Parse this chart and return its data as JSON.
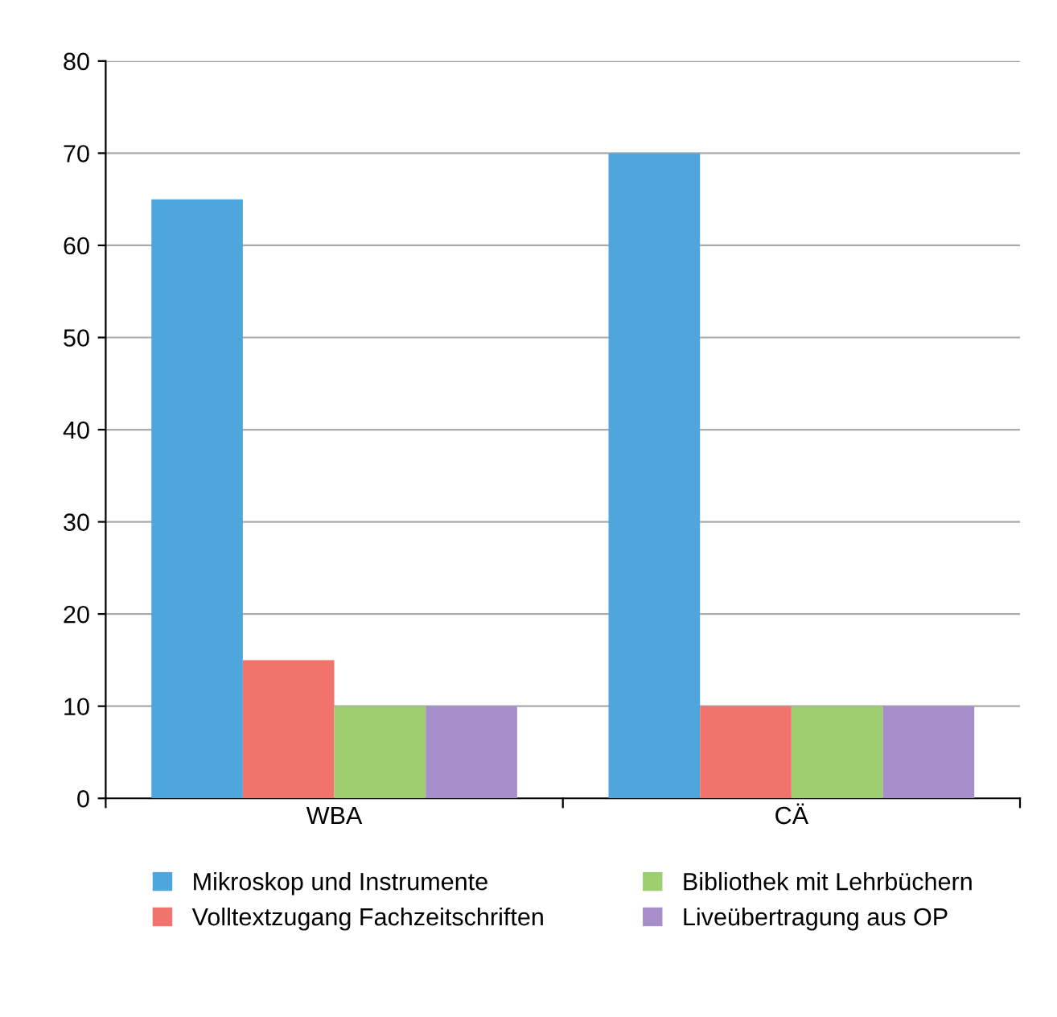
{
  "chart_data": {
    "type": "bar",
    "categories": [
      "WBA",
      "CÄ"
    ],
    "series": [
      {
        "name": "Mikroskop und Instrumente",
        "color": "#4fa6dd",
        "values": [
          65,
          70
        ]
      },
      {
        "name": "Volltextzugang Fachzeitschriften",
        "color": "#f0736c",
        "values": [
          15,
          10
        ]
      },
      {
        "name": "Bibliothek mit Lehrbüchern",
        "color": "#9dcf70",
        "values": [
          10,
          10
        ]
      },
      {
        "name": "Liveübertragung aus OP",
        "color": "#a68fc8",
        "values": [
          10,
          10
        ]
      }
    ],
    "ylim": [
      0,
      80
    ],
    "yticks": [
      0,
      10,
      20,
      30,
      40,
      50,
      60,
      70,
      80
    ],
    "grid": "y",
    "legend": "bottom"
  }
}
